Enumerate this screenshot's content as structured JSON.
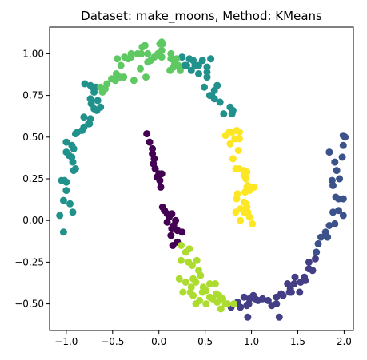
{
  "chart_data": {
    "type": "scatter",
    "title": "Dataset: make_moons, Method: KMeans",
    "xlabel": "",
    "ylabel": "",
    "xlim": [
      -1.18,
      2.1
    ],
    "ylim": [
      -0.66,
      1.16
    ],
    "xticks": [
      -1.0,
      -0.5,
      0.0,
      0.5,
      1.0,
      1.5,
      2.0
    ],
    "xtick_labels": [
      "−1.0",
      "−0.5",
      "0.0",
      "0.5",
      "1.0",
      "1.5",
      "2.0"
    ],
    "yticks": [
      -0.5,
      -0.25,
      0.0,
      0.25,
      0.5,
      0.75,
      1.0
    ],
    "ytick_labels": [
      "−0.50",
      "−0.25",
      "0.00",
      "0.25",
      "0.50",
      "0.75",
      "1.00"
    ],
    "grid": false,
    "legend": "none",
    "clusters": [
      {
        "color": "#440154",
        "points": [
          [
            -0.13,
            0.52
          ],
          [
            -0.1,
            0.47
          ],
          [
            -0.07,
            0.43
          ],
          [
            -0.07,
            0.4
          ],
          [
            -0.05,
            0.37
          ],
          [
            -0.06,
            0.34
          ],
          [
            -0.04,
            0.31
          ],
          [
            0.0,
            0.28
          ],
          [
            -0.02,
            0.26
          ],
          [
            0.03,
            0.28
          ],
          [
            0.01,
            0.24
          ],
          [
            0.02,
            0.2
          ],
          [
            0.04,
            0.08
          ],
          [
            0.06,
            0.06
          ],
          [
            0.09,
            0.04
          ],
          [
            0.09,
            -0.01
          ],
          [
            0.11,
            0.02
          ],
          [
            0.14,
            0.04
          ],
          [
            0.16,
            -0.03
          ],
          [
            0.14,
            -0.05
          ],
          [
            0.18,
            0.0
          ],
          [
            0.13,
            -0.09
          ],
          [
            0.2,
            -0.06
          ],
          [
            0.25,
            -0.07
          ],
          [
            0.15,
            -0.15
          ],
          [
            0.2,
            -0.13
          ]
        ]
      },
      {
        "color": "#3b528b",
        "points": [
          [
            1.84,
            0.41
          ],
          [
            1.9,
            0.35
          ],
          [
            1.92,
            0.3
          ],
          [
            1.99,
            0.51
          ],
          [
            2.01,
            0.5
          ],
          [
            1.99,
            0.45
          ],
          [
            1.98,
            0.38
          ],
          [
            1.95,
            0.25
          ],
          [
            1.87,
            0.24
          ],
          [
            1.88,
            0.21
          ],
          [
            1.91,
            0.14
          ],
          [
            1.94,
            0.13
          ],
          [
            1.99,
            0.13
          ],
          [
            1.88,
            0.05
          ],
          [
            1.94,
            0.06
          ],
          [
            1.99,
            0.03
          ],
          [
            1.84,
            -0.03
          ],
          [
            1.9,
            -0.02
          ],
          [
            1.8,
            -0.07
          ],
          [
            1.82,
            -0.1
          ],
          [
            1.75,
            -0.1
          ],
          [
            1.72,
            -0.14
          ],
          [
            1.7,
            -0.19
          ]
        ]
      },
      {
        "color": "#433e85",
        "points": [
          [
            1.69,
            -0.23
          ],
          [
            1.62,
            -0.25
          ],
          [
            1.62,
            -0.29
          ],
          [
            1.66,
            -0.3
          ],
          [
            1.57,
            -0.34
          ],
          [
            1.58,
            -0.36
          ],
          [
            1.53,
            -0.37
          ],
          [
            1.47,
            -0.34
          ],
          [
            1.46,
            -0.38
          ],
          [
            1.52,
            -0.43
          ],
          [
            1.42,
            -0.41
          ],
          [
            1.41,
            -0.43
          ],
          [
            1.39,
            -0.38
          ],
          [
            1.32,
            -0.44
          ],
          [
            1.27,
            -0.46
          ],
          [
            1.27,
            -0.5
          ],
          [
            1.22,
            -0.51
          ],
          [
            1.18,
            -0.48
          ],
          [
            1.12,
            -0.47
          ],
          [
            1.07,
            -0.48
          ],
          [
            1.04,
            -0.47
          ],
          [
            1.02,
            -0.45
          ],
          [
            0.98,
            -0.47
          ],
          [
            0.97,
            -0.5
          ],
          [
            0.92,
            -0.46
          ],
          [
            0.95,
            -0.51
          ],
          [
            0.88,
            -0.52
          ],
          [
            0.85,
            -0.49
          ],
          [
            0.78,
            -0.52
          ],
          [
            0.96,
            -0.58
          ],
          [
            1.3,
            -0.58
          ],
          [
            1.34,
            -0.45
          ],
          [
            1.43,
            -0.43
          ]
        ]
      },
      {
        "color": "#21918c",
        "points": [
          [
            0.3,
            0.93
          ],
          [
            0.35,
            0.9
          ],
          [
            0.33,
            0.97
          ],
          [
            0.43,
            0.93
          ],
          [
            0.43,
            0.88
          ],
          [
            0.52,
            0.89
          ],
          [
            0.52,
            0.86
          ],
          [
            0.49,
            0.8
          ],
          [
            0.55,
            0.75
          ],
          [
            0.6,
            0.73
          ],
          [
            0.57,
            0.75
          ],
          [
            0.6,
            0.78
          ],
          [
            0.66,
            0.71
          ],
          [
            0.63,
            0.81
          ],
          [
            0.56,
            0.97
          ],
          [
            0.52,
            0.92
          ],
          [
            0.47,
            0.96
          ],
          [
            0.39,
            0.93
          ],
          [
            0.37,
            0.96
          ],
          [
            0.28,
            0.93
          ],
          [
            0.25,
            0.98
          ],
          [
            -0.8,
            0.82
          ],
          [
            -0.74,
            0.81
          ],
          [
            -0.72,
            0.8
          ],
          [
            -0.7,
            0.77
          ],
          [
            -0.74,
            0.73
          ],
          [
            -0.66,
            0.72
          ],
          [
            -0.63,
            0.68
          ],
          [
            -0.67,
            0.66
          ],
          [
            -0.73,
            0.7
          ],
          [
            -0.7,
            0.67
          ],
          [
            -0.74,
            0.61
          ],
          [
            -0.75,
            0.58
          ],
          [
            -0.81,
            0.62
          ],
          [
            -0.83,
            0.54
          ],
          [
            -0.88,
            0.53
          ],
          [
            -0.9,
            0.52
          ],
          [
            -0.94,
            0.45
          ],
          [
            -0.92,
            0.43
          ],
          [
            -1.0,
            0.47
          ],
          [
            -1.0,
            0.41
          ],
          [
            -0.97,
            0.39
          ],
          [
            -0.94,
            0.38
          ],
          [
            -0.93,
            0.35
          ],
          [
            -0.9,
            0.31
          ],
          [
            -0.92,
            0.3
          ],
          [
            -1.02,
            0.24
          ],
          [
            -1.05,
            0.24
          ],
          [
            -1.0,
            0.23
          ],
          [
            -1.0,
            0.18
          ],
          [
            -1.03,
            0.12
          ],
          [
            -0.96,
            0.1
          ],
          [
            -0.93,
            0.05
          ],
          [
            -1.07,
            0.03
          ],
          [
            -1.03,
            -0.07
          ],
          [
            -0.81,
            0.56
          ],
          [
            -0.76,
            0.58
          ],
          [
            -0.68,
            0.8
          ],
          [
            0.79,
            0.64
          ],
          [
            0.8,
            0.66
          ],
          [
            0.77,
            0.68
          ],
          [
            0.7,
            0.64
          ]
        ]
      },
      {
        "color": "#5ec962",
        "points": [
          [
            -0.63,
            0.8
          ],
          [
            -0.56,
            0.82
          ],
          [
            -0.51,
            0.85
          ],
          [
            -0.46,
            0.88
          ],
          [
            -0.47,
            0.84
          ],
          [
            -0.42,
            0.86
          ],
          [
            -0.41,
            0.93
          ],
          [
            -0.45,
            0.97
          ],
          [
            -0.37,
            0.98
          ],
          [
            -0.33,
            0.97
          ],
          [
            -0.3,
            0.98
          ],
          [
            -0.3,
            1.0
          ],
          [
            -0.23,
            1.0
          ],
          [
            -0.18,
            1.04
          ],
          [
            -0.19,
            1.0
          ],
          [
            -0.15,
            1.05
          ],
          [
            -0.12,
            1.0
          ],
          [
            -0.12,
            0.95
          ],
          [
            -0.09,
            0.96
          ],
          [
            -0.05,
            0.98
          ],
          [
            -0.01,
            1.0
          ],
          [
            0.03,
            0.98
          ],
          [
            0.03,
            1.02
          ],
          [
            0.01,
            1.06
          ],
          [
            0.04,
            1.06
          ],
          [
            0.03,
            1.07
          ],
          [
            0.13,
            0.97
          ],
          [
            0.13,
            1.0
          ],
          [
            0.17,
            0.94
          ],
          [
            0.21,
            0.93
          ],
          [
            0.23,
            0.9
          ],
          [
            0.16,
            0.92
          ],
          [
            0.19,
            0.97
          ],
          [
            -0.2,
            0.91
          ],
          [
            -0.27,
            0.84
          ],
          [
            -0.38,
            0.86
          ],
          [
            -0.61,
            0.77
          ],
          [
            -0.58,
            0.79
          ],
          [
            0.12,
            0.9
          ],
          [
            -0.14,
            0.86
          ]
        ]
      },
      {
        "color": "#addc30",
        "points": [
          [
            0.24,
            -0.15
          ],
          [
            0.29,
            -0.19
          ],
          [
            0.33,
            -0.17
          ],
          [
            0.24,
            -0.24
          ],
          [
            0.32,
            -0.25
          ],
          [
            0.36,
            -0.27
          ],
          [
            0.41,
            -0.24
          ],
          [
            0.43,
            -0.3
          ],
          [
            0.45,
            -0.33
          ],
          [
            0.37,
            -0.35
          ],
          [
            0.4,
            -0.37
          ],
          [
            0.35,
            -0.4
          ],
          [
            0.29,
            -0.37
          ],
          [
            0.22,
            -0.35
          ],
          [
            0.26,
            -0.43
          ],
          [
            0.34,
            -0.43
          ],
          [
            0.37,
            -0.45
          ],
          [
            0.4,
            -0.5
          ],
          [
            0.44,
            -0.48
          ],
          [
            0.48,
            -0.4
          ],
          [
            0.51,
            -0.42
          ],
          [
            0.55,
            -0.46
          ],
          [
            0.51,
            -0.5
          ],
          [
            0.58,
            -0.47
          ],
          [
            0.62,
            -0.44
          ],
          [
            0.65,
            -0.45
          ],
          [
            0.69,
            -0.47
          ],
          [
            0.72,
            -0.5
          ],
          [
            0.74,
            -0.5
          ],
          [
            0.81,
            -0.5
          ],
          [
            0.67,
            -0.53
          ],
          [
            0.63,
            -0.49
          ],
          [
            0.55,
            -0.38
          ],
          [
            0.61,
            -0.38
          ],
          [
            0.47,
            -0.43
          ]
        ]
      },
      {
        "color": "#fde725",
        "points": [
          [
            0.76,
            0.53
          ],
          [
            0.79,
            0.53
          ],
          [
            0.84,
            0.54
          ],
          [
            0.87,
            0.53
          ],
          [
            0.77,
            0.46
          ],
          [
            0.82,
            0.49
          ],
          [
            0.72,
            0.51
          ],
          [
            0.87,
            0.49
          ],
          [
            0.86,
            0.42
          ],
          [
            0.8,
            0.37
          ],
          [
            0.83,
            0.31
          ],
          [
            0.87,
            0.31
          ],
          [
            0.92,
            0.3
          ],
          [
            0.92,
            0.27
          ],
          [
            0.95,
            0.29
          ],
          [
            0.95,
            0.2
          ],
          [
            0.96,
            0.21
          ],
          [
            0.98,
            0.18
          ],
          [
            1.0,
            0.2
          ],
          [
            1.03,
            0.2
          ],
          [
            0.93,
            0.17
          ],
          [
            0.84,
            0.13
          ],
          [
            0.92,
            0.11
          ],
          [
            0.94,
            0.1
          ],
          [
            0.95,
            0.08
          ],
          [
            0.88,
            0.07
          ],
          [
            0.92,
            0.05
          ],
          [
            0.96,
            0.05
          ],
          [
            0.83,
            0.05
          ],
          [
            0.88,
            0.0
          ],
          [
            0.98,
            0.02
          ],
          [
            1.01,
            -0.02
          ],
          [
            0.85,
            0.16
          ],
          [
            0.94,
            0.25
          ]
        ]
      }
    ]
  }
}
